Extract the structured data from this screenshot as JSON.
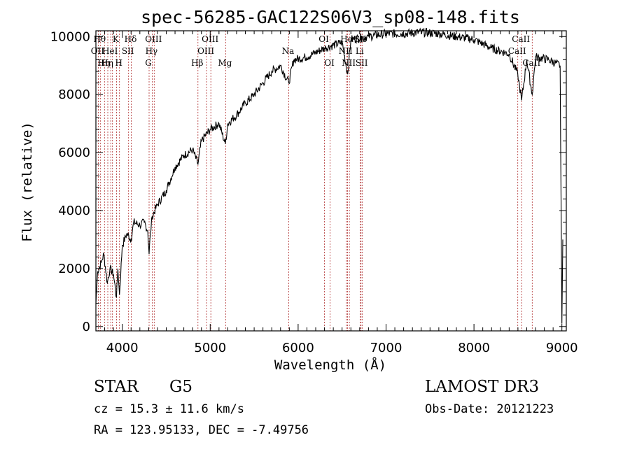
{
  "chart_data": {
    "type": "line",
    "title": "spec-56285-GAC122S06V3_sp08-148.fits",
    "xlabel": "Wavelength (Å)",
    "ylabel": "Flux (relative)",
    "xlim": [
      3700,
      9050
    ],
    "ylim": [
      -150,
      10200
    ],
    "xticks": [
      4000,
      5000,
      6000,
      7000,
      8000,
      9000
    ],
    "yticks": [
      0,
      2000,
      4000,
      6000,
      8000,
      10000
    ],
    "spectrum_anchor_points": [
      {
        "x": 3700,
        "y": 800
      },
      {
        "x": 3720,
        "y": 1900
      },
      {
        "x": 3760,
        "y": 2200
      },
      {
        "x": 3790,
        "y": 2500
      },
      {
        "x": 3830,
        "y": 1500
      },
      {
        "x": 3860,
        "y": 2000
      },
      {
        "x": 3900,
        "y": 1800
      },
      {
        "x": 3934,
        "y": 1000
      },
      {
        "x": 3950,
        "y": 2000
      },
      {
        "x": 3968,
        "y": 1100
      },
      {
        "x": 4000,
        "y": 2800
      },
      {
        "x": 4050,
        "y": 3200
      },
      {
        "x": 4101,
        "y": 3000
      },
      {
        "x": 4130,
        "y": 3600
      },
      {
        "x": 4200,
        "y": 3500
      },
      {
        "x": 4250,
        "y": 3600
      },
      {
        "x": 4290,
        "y": 3300
      },
      {
        "x": 4305,
        "y": 2500
      },
      {
        "x": 4320,
        "y": 3200
      },
      {
        "x": 4340,
        "y": 3800
      },
      {
        "x": 4400,
        "y": 4200
      },
      {
        "x": 4500,
        "y": 4700
      },
      {
        "x": 4600,
        "y": 5500
      },
      {
        "x": 4700,
        "y": 5900
      },
      {
        "x": 4800,
        "y": 6100
      },
      {
        "x": 4861,
        "y": 5600
      },
      {
        "x": 4900,
        "y": 6400
      },
      {
        "x": 5000,
        "y": 6800
      },
      {
        "x": 5100,
        "y": 7000
      },
      {
        "x": 5172,
        "y": 6300
      },
      {
        "x": 5200,
        "y": 7000
      },
      {
        "x": 5300,
        "y": 7300
      },
      {
        "x": 5400,
        "y": 7700
      },
      {
        "x": 5500,
        "y": 8000
      },
      {
        "x": 5600,
        "y": 8400
      },
      {
        "x": 5700,
        "y": 8800
      },
      {
        "x": 5800,
        "y": 9000
      },
      {
        "x": 5893,
        "y": 8400
      },
      {
        "x": 5950,
        "y": 9200
      },
      {
        "x": 6100,
        "y": 9300
      },
      {
        "x": 6300,
        "y": 9600
      },
      {
        "x": 6500,
        "y": 9800
      },
      {
        "x": 6563,
        "y": 8700
      },
      {
        "x": 6600,
        "y": 9900
      },
      {
        "x": 6800,
        "y": 10000
      },
      {
        "x": 7000,
        "y": 10100
      },
      {
        "x": 7200,
        "y": 10100
      },
      {
        "x": 7400,
        "y": 10150
      },
      {
        "x": 7600,
        "y": 10100
      },
      {
        "x": 7800,
        "y": 10000
      },
      {
        "x": 8000,
        "y": 9900
      },
      {
        "x": 8200,
        "y": 9600
      },
      {
        "x": 8400,
        "y": 9400
      },
      {
        "x": 8498,
        "y": 8700
      },
      {
        "x": 8542,
        "y": 7800
      },
      {
        "x": 8600,
        "y": 9200
      },
      {
        "x": 8662,
        "y": 8000
      },
      {
        "x": 8700,
        "y": 9300
      },
      {
        "x": 8850,
        "y": 9200
      },
      {
        "x": 8980,
        "y": 9000
      },
      {
        "x": 9000,
        "y": 100
      },
      {
        "x": 9010,
        "y": 3000
      }
    ],
    "line_markers": [
      {
        "wavelength": 3727,
        "label": "OII",
        "row": 2
      },
      {
        "wavelength": 3750,
        "label": "Hθ",
        "row": 1
      },
      {
        "wavelength": 3798,
        "label": "Hη",
        "row": 3
      },
      {
        "wavelength": 3835,
        "label": "Hη",
        "row": 3
      },
      {
        "wavelength": 3869,
        "label": "HeI",
        "row": 2
      },
      {
        "wavelength": 3889,
        "label": "",
        "row": 0
      },
      {
        "wavelength": 3934,
        "label": "K",
        "row": 1
      },
      {
        "wavelength": 3968,
        "label": "H",
        "row": 3
      },
      {
        "wavelength": 4072,
        "label": "SII",
        "row": 2
      },
      {
        "wavelength": 4102,
        "label": "Hδ",
        "row": 1
      },
      {
        "wavelength": 4305,
        "label": "G",
        "row": 3
      },
      {
        "wavelength": 4340,
        "label": "Hγ",
        "row": 2
      },
      {
        "wavelength": 4363,
        "label": "OIII",
        "row": 1
      },
      {
        "wavelength": 4861,
        "label": "Hβ",
        "row": 3
      },
      {
        "wavelength": 4959,
        "label": "OIII",
        "row": 2
      },
      {
        "wavelength": 5007,
        "label": "OIII",
        "row": 1
      },
      {
        "wavelength": 5175,
        "label": "Mg",
        "row": 3
      },
      {
        "wavelength": 5893,
        "label": "Na",
        "row": 2
      },
      {
        "wavelength": 6300,
        "label": "OI",
        "row": 1
      },
      {
        "wavelength": 6364,
        "label": "OI",
        "row": 3
      },
      {
        "wavelength": 6548,
        "label": "NII",
        "row": 2
      },
      {
        "wavelength": 6563,
        "label": "Hα",
        "row": 1
      },
      {
        "wavelength": 6583,
        "label": "NII",
        "row": 3
      },
      {
        "wavelength": 6708,
        "label": "Li",
        "row": 2
      },
      {
        "wavelength": 6716,
        "label": "SII",
        "row": 1
      },
      {
        "wavelength": 6731,
        "label": "SII",
        "row": 3
      },
      {
        "wavelength": 8498,
        "label": "CaII",
        "row": 2
      },
      {
        "wavelength": 8542,
        "label": "CaII",
        "row": 1
      },
      {
        "wavelength": 8662,
        "label": "CaII",
        "row": 3
      }
    ]
  },
  "info": {
    "object_class": "STAR",
    "subclass": "G5",
    "survey": "LAMOST DR3",
    "redshift": "cz = 15.3 ± 11.6 km/s",
    "obs_date": "Obs-Date: 20121223",
    "coords": "RA = 123.95133, DEC =  -7.49756"
  },
  "colors": {
    "spectrum": "#000000",
    "marker_line": "#b03030",
    "axes": "#000000"
  }
}
